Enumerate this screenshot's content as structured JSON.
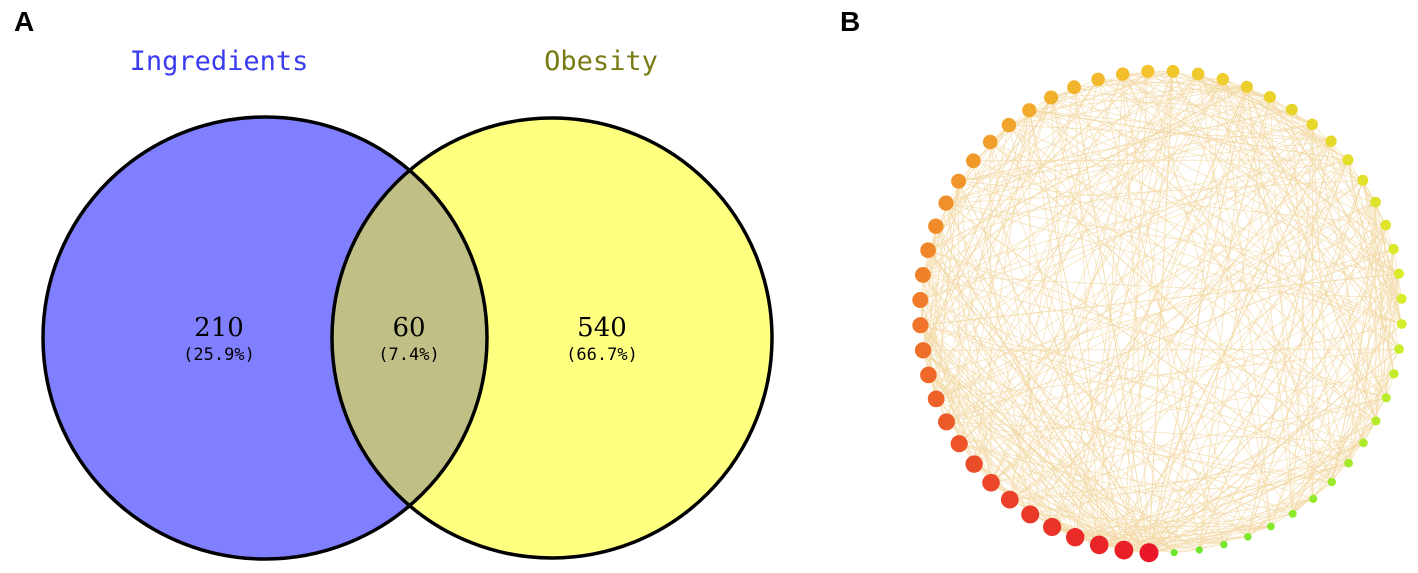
{
  "panels": {
    "a_letter": "A",
    "b_letter": "B"
  },
  "venn": {
    "sets": [
      {
        "name": "Ingredients",
        "color": "#7f7fff",
        "title_color": "#3b3bf0"
      },
      {
        "name": "Obesity",
        "color": "#ffff80",
        "title_color": "#7a7a14"
      }
    ],
    "overlap_color": "#bfbf86",
    "regions": {
      "left_only": {
        "count": "210",
        "percent": "(25.9%)"
      },
      "intersection": {
        "count": "60",
        "percent": "(7.4%)"
      },
      "right_only": {
        "count": "540",
        "percent": "(66.7%)"
      }
    }
  },
  "network": {
    "node_count": 60,
    "edge_color": "#f3d9a6",
    "node_color_scale": [
      "#e81828",
      "#f07a2a",
      "#f2c62c",
      "#d8ee2a",
      "#66e62c"
    ]
  }
}
